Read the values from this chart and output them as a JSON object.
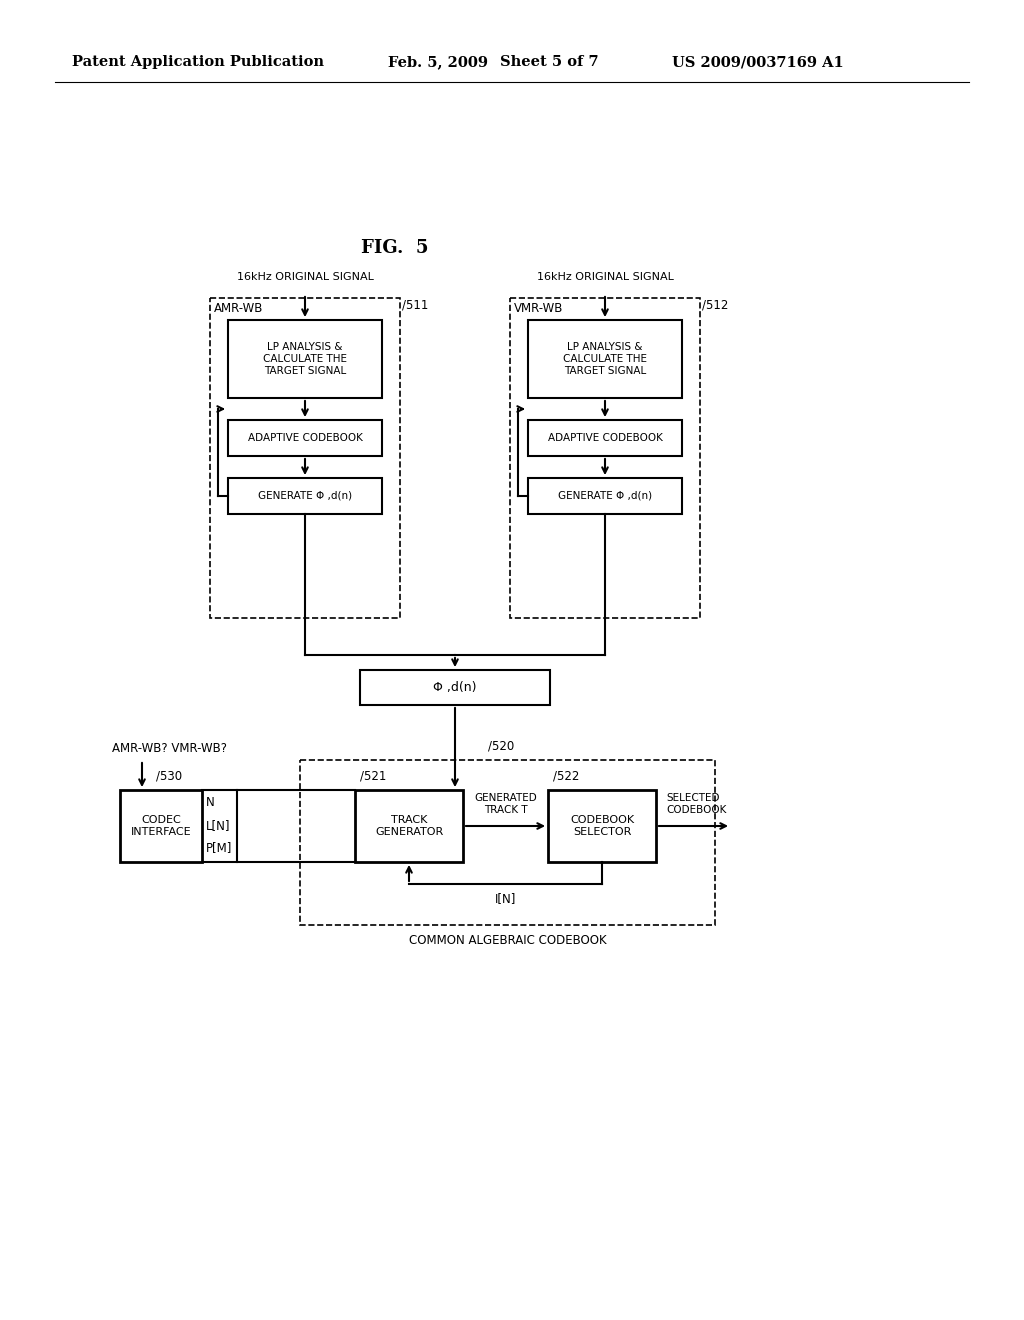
{
  "background_color": "#ffffff",
  "header_text": "Patent Application Publication",
  "header_date": "Feb. 5, 2009",
  "header_sheet": "Sheet 5 of 7",
  "header_patent": "US 2009/0037169 A1",
  "fig_label": "FIG.  5",
  "signal_label_left": "16kHz ORIGINAL SIGNAL",
  "signal_label_right": "16kHz ORIGINAL SIGNAL",
  "amr_wb_label": "AMR-WB",
  "vmr_wb_label": "VMR-WB",
  "box511_label": "511",
  "box512_label": "512",
  "box530_label": "530",
  "box520_label": "520",
  "box521_label": "521",
  "box522_label": "522",
  "lp_analysis_text": "LP ANALYSIS &\nCALCULATE THE\nTARGET SIGNAL",
  "adaptive_codebook_text": "ADAPTIVE CODEBOOK",
  "generate_phi_text": "GENERATE Φ ,d(n)",
  "phi_label": "Φ ,d(n)",
  "codec_interface_text": "CODEC\nINTERFACE",
  "track_generator_text": "TRACK\nGENERATOR",
  "codebook_selector_text": "CODEBOOK\nSELECTOR",
  "generated_track_label": "GENERATED\nTRACK T",
  "selected_codebook_label": "SELECTED\nCODEBOOK",
  "amr_wb_question": "AMR-WB? VMR-WB?",
  "n_label": "N",
  "ln_label": "L[N]",
  "pm_label": "P[M]",
  "in_label": "I[N]",
  "common_algebraic_label": "COMMON ALGEBRAIC CODEBOOK"
}
